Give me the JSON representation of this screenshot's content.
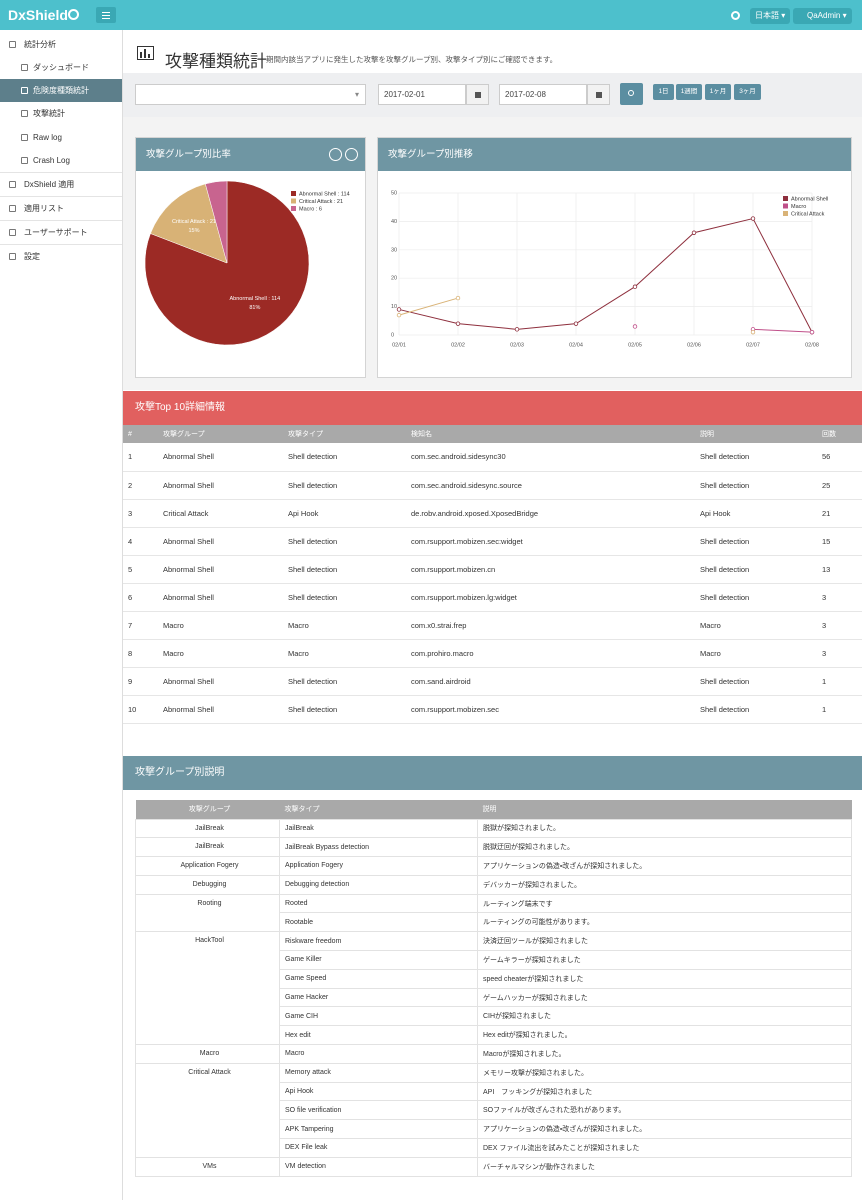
{
  "topbar": {
    "brand": "DxShield",
    "language": "日本語",
    "user": "QaAdmin"
  },
  "sidebar": {
    "items": [
      "統計分析",
      "ダッシュボード",
      "危険度種類統計",
      "攻撃統計",
      "Raw log",
      "Crash Log",
      "DxShield 適用",
      "適用リスト",
      "ユーザーサポート",
      "設定"
    ]
  },
  "page_header": {
    "title": "攻撃種類統計",
    "description": "期間内該当アプリに発生した攻撃を攻撃グループ別、攻撃タイプ別にご確認できます。"
  },
  "filter": {
    "start_date": "2017-02-01",
    "end_date": "2017-02-08",
    "periods": [
      "1日",
      "1週間",
      "1ヶ月",
      "3ヶ月"
    ]
  },
  "chart_data": [
    {
      "type": "pie",
      "title": "攻撃グループ別比率",
      "labels": [
        "Abnormal Shell : 114",
        "Critical Attack : 21",
        "Macro : 6"
      ],
      "values": [
        114,
        21,
        6
      ],
      "percent_labels": [
        "81%",
        "15%",
        null
      ],
      "colors": [
        "#9c2a25",
        "#d8b276",
        "#c8648f"
      ]
    },
    {
      "type": "line",
      "title": "攻撃グループ別推移",
      "categories": [
        "02/01",
        "02/02",
        "02/03",
        "02/04",
        "02/05",
        "02/06",
        "02/07",
        "02/08"
      ],
      "series": [
        {
          "name": "Abnormal Shell",
          "color": "#8e2f3d",
          "values": [
            9,
            4,
            2,
            4,
            17,
            36,
            41,
            1
          ]
        },
        {
          "name": "Macro",
          "color": "#c0508a",
          "values": [
            null,
            null,
            null,
            null,
            3,
            null,
            2,
            1
          ]
        },
        {
          "name": "Critical Attack",
          "color": "#d9b377",
          "values": [
            7,
            13,
            null,
            null,
            null,
            null,
            1,
            null
          ]
        }
      ],
      "ylim": [
        0,
        50
      ],
      "yticks": [
        0,
        10,
        20,
        30,
        40,
        50
      ],
      "grid": true
    }
  ],
  "top10": {
    "title": "攻撃Top 10詳細情報",
    "columns": [
      "#",
      "攻撃グループ",
      "攻撃タイプ",
      "検知名",
      "説明",
      "回数"
    ],
    "rows": [
      [
        1,
        "Abnormal Shell",
        "Shell detection",
        "com.sec.android.sidesync30",
        "Shell detection",
        56
      ],
      [
        2,
        "Abnormal Shell",
        "Shell detection",
        "com.sec.android.sidesync.source",
        "Shell detection",
        25
      ],
      [
        3,
        "Critical Attack",
        "Api Hook",
        "de.robv.android.xposed.XposedBridge",
        "Api Hook",
        21
      ],
      [
        4,
        "Abnormal Shell",
        "Shell detection",
        "com.rsupport.mobizen.sec:widget",
        "Shell detection",
        15
      ],
      [
        5,
        "Abnormal Shell",
        "Shell detection",
        "com.rsupport.mobizen.cn",
        "Shell detection",
        13
      ],
      [
        6,
        "Abnormal Shell",
        "Shell detection",
        "com.rsupport.mobizen.lg:widget",
        "Shell detection",
        3
      ],
      [
        7,
        "Macro",
        "Macro",
        "com.x0.strai.frep",
        "Macro",
        3
      ],
      [
        8,
        "Macro",
        "Macro",
        "com.prohiro.macro",
        "Macro",
        3
      ],
      [
        9,
        "Abnormal Shell",
        "Shell detection",
        "com.sand.airdroid",
        "Shell detection",
        1
      ],
      [
        10,
        "Abnormal Shell",
        "Shell detection",
        "com.rsupport.mobizen.sec",
        "Shell detection",
        1
      ]
    ]
  },
  "group_descriptions": {
    "title": "攻撃グループ別説明",
    "columns": [
      "攻撃グループ",
      "攻撃タイプ",
      "説明"
    ],
    "groups": [
      {
        "name": "JailBreak",
        "rows": [
          [
            "JailBreak",
            "脱獄が探知されました。"
          ]
        ]
      },
      {
        "name": "JailBreak",
        "rows": [
          [
            "JailBreak Bypass detection",
            "脱獄迂回が探知されました。"
          ]
        ]
      },
      {
        "name": "Application Fogery",
        "rows": [
          [
            "Application Fogery",
            "アプリケーションの偽造・改ざんが探知されました。"
          ]
        ]
      },
      {
        "name": "Debugging",
        "rows": [
          [
            "Debugging detection",
            "デバッカーが探知されました。"
          ]
        ]
      },
      {
        "name": "Rooting",
        "rows": [
          [
            "Rooted",
            "ルーティング端末です"
          ],
          [
            "Rootable",
            "ルーティングの可能性があります。"
          ]
        ]
      },
      {
        "name": "HackTool",
        "rows": [
          [
            "Riskware freedom",
            "決済迂回ツールが探知されました"
          ],
          [
            "Game Killer",
            "ゲームキラーが探知されました"
          ],
          [
            "Game Speed",
            "speed cheaterが探知されました"
          ],
          [
            "Game Hacker",
            "ゲームハッカーが探知されました"
          ],
          [
            "Game CIH",
            "CIHが探知されました"
          ],
          [
            "Hex edit",
            "Hex editが探知されました。"
          ]
        ]
      },
      {
        "name": "Macro",
        "rows": [
          [
            "Macro",
            "Macroが探知されました。"
          ]
        ]
      },
      {
        "name": "Critical Attack",
        "rows": [
          [
            "Memory attack",
            "メモリー攻撃が探知されました。"
          ],
          [
            "Api Hook",
            "API　フッキングが探知されました"
          ],
          [
            "SO file verification",
            "SOファイルが改ざんされた恐れがあります。"
          ],
          [
            "APK Tampering",
            "アプリケーションの偽造・改ざんが探知されました。"
          ],
          [
            "DEX File leak",
            "DEX ファイル流出を試みたことが探知されました"
          ]
        ]
      },
      {
        "name": "VMs",
        "rows": [
          [
            "VM detection",
            "バーチャルマシンが動作されました"
          ]
        ]
      }
    ]
  }
}
